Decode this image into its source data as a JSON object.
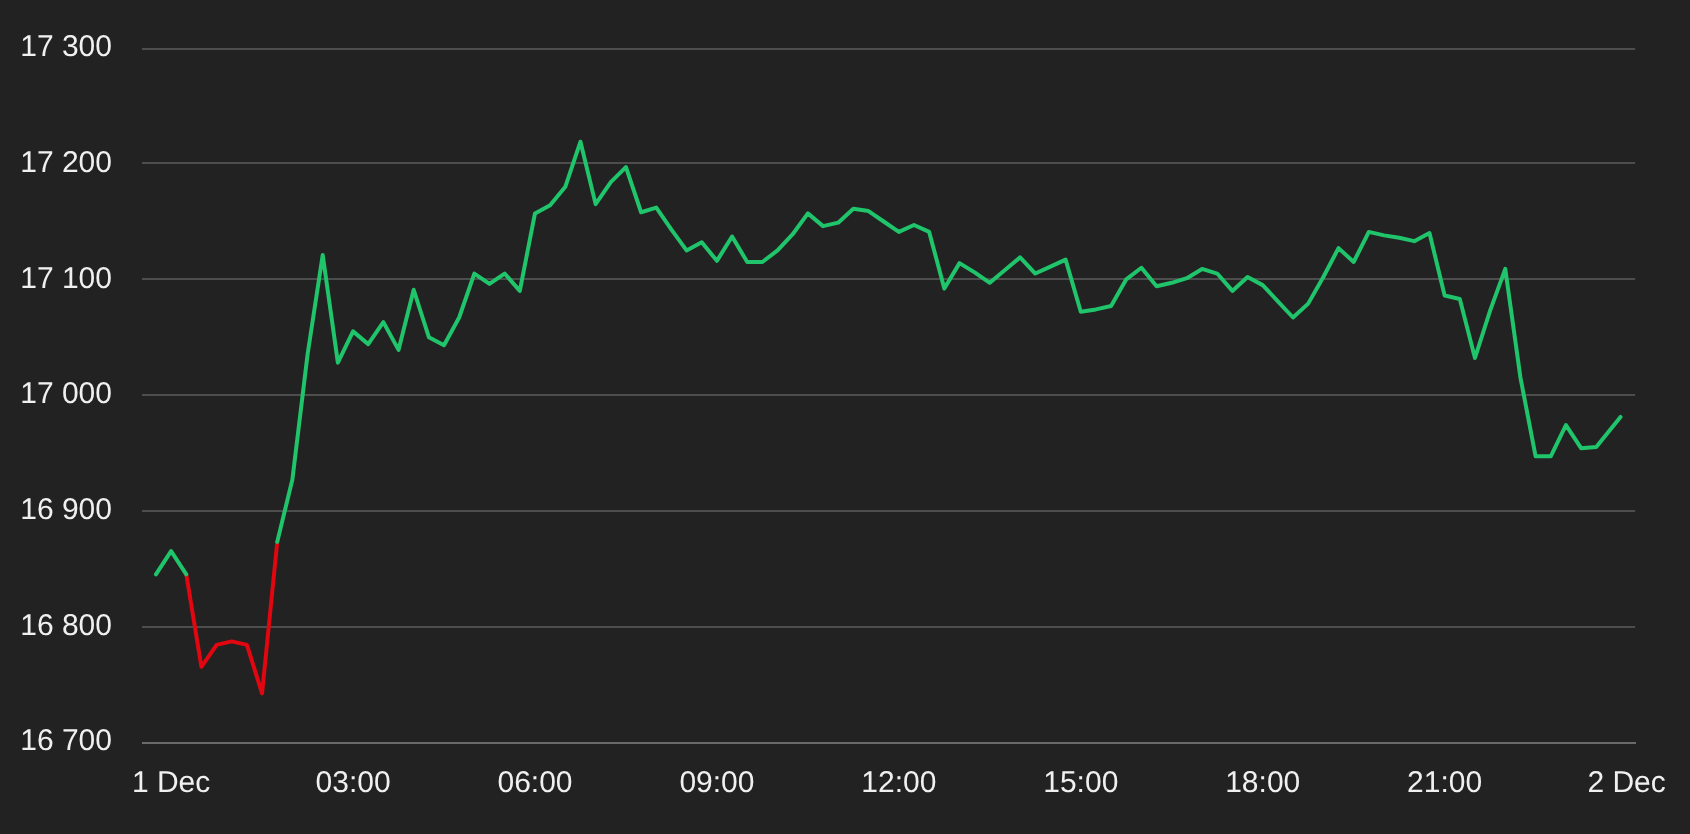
{
  "chart_data": {
    "type": "line",
    "grid": "y",
    "marker": "none",
    "line_style": "solid",
    "xlim": [
      -0.48,
      24.14
    ],
    "xticks": [
      {
        "value": 0,
        "label": "1 Dec"
      },
      {
        "value": 3,
        "label": "03:00"
      },
      {
        "value": 6,
        "label": "06:00"
      },
      {
        "value": 9,
        "label": "09:00"
      },
      {
        "value": 12,
        "label": "12:00"
      },
      {
        "value": 15,
        "label": "15:00"
      },
      {
        "value": 18,
        "label": "18:00"
      },
      {
        "value": 21,
        "label": "21:00"
      },
      {
        "value": 24,
        "label": "2 Dec"
      }
    ],
    "ylim": [
      16700,
      17300
    ],
    "yticks": [
      {
        "value": 16700,
        "label": "16 700"
      },
      {
        "value": 16800,
        "label": "16 800"
      },
      {
        "value": 16900,
        "label": "16 900"
      },
      {
        "value": 17000,
        "label": "17 000"
      },
      {
        "value": 17100,
        "label": "17 100"
      },
      {
        "value": 17200,
        "label": "17 200"
      },
      {
        "value": 17300,
        "label": "17 300"
      }
    ],
    "x": [
      -0.25,
      0,
      0.25,
      0.5,
      0.75,
      1,
      1.25,
      1.5,
      1.75,
      2,
      2.25,
      2.5,
      2.75,
      3,
      3.25,
      3.5,
      3.75,
      4,
      4.25,
      4.5,
      4.75,
      5,
      5.25,
      5.5,
      5.75,
      6,
      6.25,
      6.5,
      6.75,
      7,
      7.25,
      7.5,
      7.75,
      8,
      8.25,
      8.5,
      8.75,
      9,
      9.25,
      9.5,
      9.75,
      10,
      10.25,
      10.5,
      10.75,
      11,
      11.25,
      11.5,
      11.75,
      12,
      12.25,
      12.5,
      12.75,
      13,
      13.25,
      13.5,
      13.75,
      14,
      14.25,
      14.5,
      14.75,
      15,
      15.25,
      15.5,
      15.75,
      16,
      16.25,
      16.5,
      16.75,
      17,
      17.25,
      17.5,
      17.75,
      18,
      18.25,
      18.5,
      18.75,
      19,
      19.25,
      19.5,
      19.75,
      20,
      20.25,
      20.5,
      20.75,
      21,
      21.25,
      21.5,
      21.75,
      22,
      22.25,
      22.5,
      22.75,
      23,
      23.25,
      23.5,
      23.9
    ],
    "series": [
      {
        "color": "#1fc46b",
        "values": [
          16845,
          16865,
          16845,
          null,
          null,
          null,
          null,
          null,
          16873,
          16927,
          17035,
          17121,
          17028,
          17055,
          17044,
          17063,
          17039,
          17091,
          17050,
          17043,
          17067,
          17105,
          17096,
          17105,
          17090,
          17157,
          17164,
          17180,
          17219,
          17165,
          17184,
          17197,
          17158,
          17162,
          17143,
          17125,
          17132,
          17116,
          17137,
          17115,
          17115,
          17125,
          17139,
          17157,
          17146,
          17149,
          17161,
          17159,
          17150,
          17141,
          17147,
          17141,
          17092,
          17114,
          17106,
          17097,
          17108,
          17119,
          17105,
          17111,
          17117,
          17072,
          17074,
          17077,
          17100,
          17110,
          17094,
          17097,
          17101,
          17109,
          17105,
          17090,
          17102,
          17095,
          17081,
          17067,
          17079,
          17102,
          17127,
          17115,
          17141,
          17138,
          17136,
          17133,
          17140,
          17086,
          17083,
          17032,
          17073,
          17109,
          17015,
          16947,
          16947,
          16974,
          16954,
          16955,
          16981
        ]
      },
      {
        "color": "#e1060f",
        "x": [
          0.25,
          0.5,
          0.75,
          1,
          1.25,
          1.5,
          1.75
        ],
        "values": [
          16845,
          16765,
          16784,
          16787,
          16784,
          16742,
          16873
        ]
      }
    ]
  }
}
